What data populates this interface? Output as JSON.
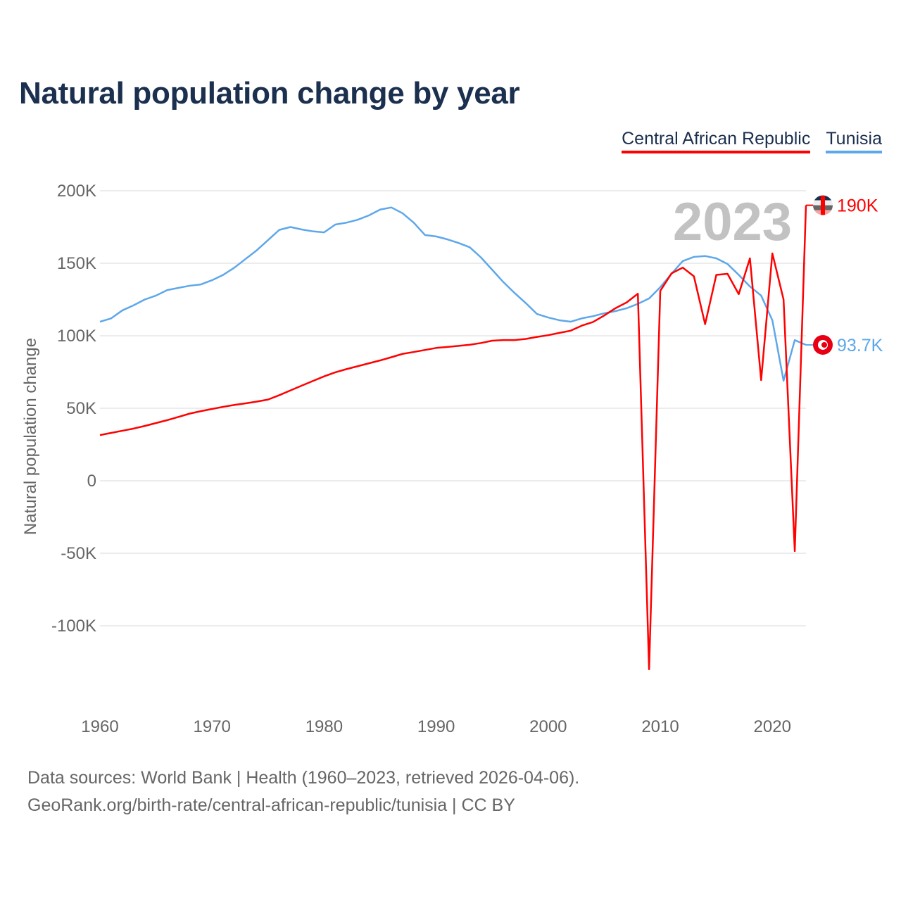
{
  "title": "Natural population change by year",
  "year_label": "2023",
  "footer": {
    "line1": "Data sources: World Bank | Health (1960–2023, retrieved 2026-04-06).",
    "line2": "GeoRank.org/birth-rate/central-african-republic/tunisia | CC BY"
  },
  "chart_data": {
    "type": "line",
    "title": "Natural population change by year",
    "xlabel": "",
    "ylabel": "Natural population change",
    "xlim": [
      1960,
      2023
    ],
    "ylim": [
      -150000,
      200000
    ],
    "grid": true,
    "legend_position": "top-right",
    "x_ticks": [
      1960,
      1970,
      1980,
      1990,
      2000,
      2010,
      2020
    ],
    "x_tick_labels": [
      "1960",
      "1970",
      "1980",
      "1990",
      "2000",
      "2010",
      "2020"
    ],
    "y_ticks": [
      200000,
      150000,
      100000,
      50000,
      0,
      -50000,
      -100000
    ],
    "y_tick_labels": [
      "200K",
      "150K",
      "100K",
      "50K",
      "0",
      "-50K",
      "-100K"
    ],
    "x": [
      1960,
      1961,
      1962,
      1963,
      1964,
      1965,
      1966,
      1967,
      1968,
      1969,
      1970,
      1971,
      1972,
      1973,
      1974,
      1975,
      1976,
      1977,
      1978,
      1979,
      1980,
      1981,
      1982,
      1983,
      1984,
      1985,
      1986,
      1987,
      1988,
      1989,
      1990,
      1991,
      1992,
      1993,
      1994,
      1995,
      1996,
      1997,
      1998,
      1999,
      2000,
      2001,
      2002,
      2003,
      2004,
      2005,
      2006,
      2007,
      2008,
      2009,
      2010,
      2011,
      2012,
      2013,
      2014,
      2015,
      2016,
      2017,
      2018,
      2019,
      2020,
      2021,
      2022,
      2023
    ],
    "series": [
      {
        "name": "Central African Republic",
        "color": "#ff0000",
        "end_label": "190K",
        "values": [
          31500,
          33000,
          34500,
          36000,
          37800,
          39800,
          41800,
          44000,
          46300,
          48000,
          49500,
          51000,
          52300,
          53400,
          54600,
          56000,
          59000,
          62300,
          65600,
          68800,
          72000,
          74800,
          77000,
          79000,
          81000,
          83000,
          85200,
          87500,
          88800,
          90200,
          91600,
          92300,
          93000,
          93800,
          95000,
          96600,
          97000,
          97000,
          97800,
          99200,
          100400,
          102000,
          103500,
          107000,
          109500,
          114000,
          119000,
          123000,
          129000,
          -130000,
          131000,
          143000,
          147000,
          141000,
          108000,
          142000,
          142700,
          128700,
          153400,
          69400,
          156800,
          125000,
          -48500,
          190000
        ]
      },
      {
        "name": "Tunisia",
        "color": "#5ea7ea",
        "end_label": "93.7K",
        "values": [
          109700,
          112000,
          117500,
          121000,
          125000,
          127700,
          131500,
          133000,
          134500,
          135400,
          138300,
          142000,
          147000,
          153000,
          159000,
          166000,
          173000,
          175000,
          173300,
          172000,
          171300,
          176700,
          178000,
          180000,
          183000,
          187000,
          188500,
          184500,
          178000,
          169500,
          168500,
          166500,
          164000,
          161000,
          154000,
          145500,
          137000,
          129500,
          122500,
          115000,
          112600,
          110700,
          109700,
          112000,
          113500,
          115500,
          117000,
          119000,
          122000,
          125700,
          133500,
          142700,
          151500,
          154400,
          155000,
          153400,
          149500,
          142000,
          134000,
          127700,
          110700,
          69000,
          97000,
          93700
        ]
      }
    ]
  }
}
